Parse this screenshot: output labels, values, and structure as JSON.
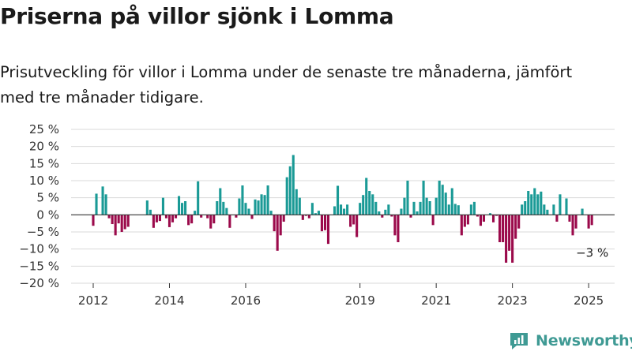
{
  "title": "Priserna på villor sjönk i Lomma",
  "subtitle_line1": "Prisutveckling för villor i Lomma under de senaste tre månaderna, jämfört",
  "subtitle_line2": "med tre månader tidigare.",
  "brand": "Newsworthy",
  "colors": {
    "positive": "#1a9a96",
    "negative": "#9b0a4b",
    "grid": "#d9d9d9",
    "axis": "#333333",
    "brand": "#3f9a94"
  },
  "chart_data": {
    "type": "bar",
    "ylim": [
      -20,
      25
    ],
    "yticks": [
      25,
      20,
      15,
      10,
      5,
      0,
      -5,
      -10,
      -15,
      -20
    ],
    "ytick_labels": [
      "25 %",
      "20 %",
      "15 %",
      "10 %",
      "5 %",
      "0 %",
      "−5 %",
      "−10 %",
      "−15 %",
      "−20 %"
    ],
    "x_start": "2012-01",
    "x_end": "2025-07",
    "xtick_labels": [
      {
        "label": "2012",
        "date": "2012-01"
      },
      {
        "label": "2014",
        "date": "2014-01"
      },
      {
        "label": "2016",
        "date": "2016-01"
      },
      {
        "label": "2019",
        "date": "2019-01"
      },
      {
        "label": "2021",
        "date": "2021-01"
      },
      {
        "label": "2023",
        "date": "2023-01"
      },
      {
        "label": "2025",
        "date": "2025-01"
      }
    ],
    "grid": true,
    "annotation": {
      "text": "−3 %",
      "date": "2025-01",
      "value": -3
    },
    "series": [
      {
        "points": [
          {
            "date": "2012-01",
            "value": -3.2
          },
          {
            "date": "2012-02",
            "value": 6.2
          },
          {
            "date": "2012-04",
            "value": 8.3
          },
          {
            "date": "2012-05",
            "value": 6.0
          },
          {
            "date": "2012-06",
            "value": -1.0
          },
          {
            "date": "2012-07",
            "value": -2.7
          },
          {
            "date": "2012-08",
            "value": -6.0
          },
          {
            "date": "2012-09",
            "value": -2.5
          },
          {
            "date": "2012-10",
            "value": -5.0
          },
          {
            "date": "2012-11",
            "value": -4.2
          },
          {
            "date": "2012-12",
            "value": -3.5
          },
          {
            "date": "2013-06",
            "value": 4.2
          },
          {
            "date": "2013-07",
            "value": 1.5
          },
          {
            "date": "2013-08",
            "value": -3.8
          },
          {
            "date": "2013-09",
            "value": -2.2
          },
          {
            "date": "2013-10",
            "value": -1.8
          },
          {
            "date": "2013-11",
            "value": 5.0
          },
          {
            "date": "2013-12",
            "value": -1.0
          },
          {
            "date": "2014-01",
            "value": -3.6
          },
          {
            "date": "2014-02",
            "value": -2.2
          },
          {
            "date": "2014-03",
            "value": -1.0
          },
          {
            "date": "2014-04",
            "value": 5.5
          },
          {
            "date": "2014-05",
            "value": 3.5
          },
          {
            "date": "2014-06",
            "value": 4.0
          },
          {
            "date": "2014-07",
            "value": -3.0
          },
          {
            "date": "2014-08",
            "value": -2.5
          },
          {
            "date": "2014-09",
            "value": 1.2
          },
          {
            "date": "2014-10",
            "value": 9.8
          },
          {
            "date": "2014-11",
            "value": -0.8
          },
          {
            "date": "2015-01",
            "value": -1.0
          },
          {
            "date": "2015-02",
            "value": -4.0
          },
          {
            "date": "2015-03",
            "value": -2.5
          },
          {
            "date": "2015-04",
            "value": 4.0
          },
          {
            "date": "2015-05",
            "value": 7.8
          },
          {
            "date": "2015-06",
            "value": 3.8
          },
          {
            "date": "2015-07",
            "value": 2.0
          },
          {
            "date": "2015-08",
            "value": -3.8
          },
          {
            "date": "2015-10",
            "value": -0.8
          },
          {
            "date": "2015-11",
            "value": 4.8
          },
          {
            "date": "2015-12",
            "value": 8.6
          },
          {
            "date": "2016-01",
            "value": 3.5
          },
          {
            "date": "2016-02",
            "value": 1.8
          },
          {
            "date": "2016-03",
            "value": -1.2
          },
          {
            "date": "2016-04",
            "value": 4.5
          },
          {
            "date": "2016-05",
            "value": 4.2
          },
          {
            "date": "2016-06",
            "value": 6.0
          },
          {
            "date": "2016-07",
            "value": 5.8
          },
          {
            "date": "2016-08",
            "value": 8.6
          },
          {
            "date": "2016-09",
            "value": 1.2
          },
          {
            "date": "2016-10",
            "value": -4.8
          },
          {
            "date": "2016-11",
            "value": -10.5
          },
          {
            "date": "2016-12",
            "value": -6.0
          },
          {
            "date": "2017-01",
            "value": -2.0
          },
          {
            "date": "2017-02",
            "value": 11.0
          },
          {
            "date": "2017-03",
            "value": 14.2
          },
          {
            "date": "2017-04",
            "value": 17.5
          },
          {
            "date": "2017-05",
            "value": 7.5
          },
          {
            "date": "2017-06",
            "value": 5.0
          },
          {
            "date": "2017-07",
            "value": -1.5
          },
          {
            "date": "2017-08",
            "value": -0.3
          },
          {
            "date": "2017-09",
            "value": -1.0
          },
          {
            "date": "2017-10",
            "value": 3.5
          },
          {
            "date": "2017-11",
            "value": 0.5
          },
          {
            "date": "2017-12",
            "value": 1.2
          },
          {
            "date": "2018-01",
            "value": -4.8
          },
          {
            "date": "2018-02",
            "value": -4.5
          },
          {
            "date": "2018-03",
            "value": -8.5
          },
          {
            "date": "2018-05",
            "value": 2.5
          },
          {
            "date": "2018-06",
            "value": 8.5
          },
          {
            "date": "2018-07",
            "value": 3.0
          },
          {
            "date": "2018-08",
            "value": 1.8
          },
          {
            "date": "2018-09",
            "value": 3.0
          },
          {
            "date": "2018-10",
            "value": -3.5
          },
          {
            "date": "2018-11",
            "value": -2.8
          },
          {
            "date": "2018-12",
            "value": -6.5
          },
          {
            "date": "2019-01",
            "value": 3.5
          },
          {
            "date": "2019-02",
            "value": 5.8
          },
          {
            "date": "2019-03",
            "value": 10.8
          },
          {
            "date": "2019-04",
            "value": 7.0
          },
          {
            "date": "2019-05",
            "value": 6.0
          },
          {
            "date": "2019-06",
            "value": 3.8
          },
          {
            "date": "2019-07",
            "value": 1.0
          },
          {
            "date": "2019-08",
            "value": -0.8
          },
          {
            "date": "2019-09",
            "value": 1.5
          },
          {
            "date": "2019-10",
            "value": 3.0
          },
          {
            "date": "2019-11",
            "value": -0.5
          },
          {
            "date": "2019-12",
            "value": -6.0
          },
          {
            "date": "2020-01",
            "value": -8.0
          },
          {
            "date": "2020-02",
            "value": 1.8
          },
          {
            "date": "2020-03",
            "value": 5.0
          },
          {
            "date": "2020-04",
            "value": 10.0
          },
          {
            "date": "2020-05",
            "value": -0.8
          },
          {
            "date": "2020-06",
            "value": 3.8
          },
          {
            "date": "2020-07",
            "value": 1.0
          },
          {
            "date": "2020-08",
            "value": 3.8
          },
          {
            "date": "2020-09",
            "value": 10.0
          },
          {
            "date": "2020-10",
            "value": 5.0
          },
          {
            "date": "2020-11",
            "value": 4.0
          },
          {
            "date": "2020-12",
            "value": -3.0
          },
          {
            "date": "2021-01",
            "value": 5.0
          },
          {
            "date": "2021-02",
            "value": 10.0
          },
          {
            "date": "2021-03",
            "value": 8.8
          },
          {
            "date": "2021-04",
            "value": 6.5
          },
          {
            "date": "2021-05",
            "value": 3.0
          },
          {
            "date": "2021-06",
            "value": 7.8
          },
          {
            "date": "2021-07",
            "value": 3.2
          },
          {
            "date": "2021-08",
            "value": 2.8
          },
          {
            "date": "2021-09",
            "value": -6.0
          },
          {
            "date": "2021-10",
            "value": -3.5
          },
          {
            "date": "2021-11",
            "value": -2.8
          },
          {
            "date": "2021-12",
            "value": 3.0
          },
          {
            "date": "2022-01",
            "value": 3.8
          },
          {
            "date": "2022-02",
            "value": -0.5
          },
          {
            "date": "2022-03",
            "value": -3.2
          },
          {
            "date": "2022-04",
            "value": -2.0
          },
          {
            "date": "2022-06",
            "value": 0.5
          },
          {
            "date": "2022-07",
            "value": -2.2
          },
          {
            "date": "2022-08",
            "value": -0.3
          },
          {
            "date": "2022-09",
            "value": -8.0
          },
          {
            "date": "2022-10",
            "value": -8.0
          },
          {
            "date": "2022-11",
            "value": -14.0
          },
          {
            "date": "2022-12",
            "value": -10.5
          },
          {
            "date": "2023-01",
            "value": -14.0
          },
          {
            "date": "2023-02",
            "value": -7.0
          },
          {
            "date": "2023-03",
            "value": -4.0
          },
          {
            "date": "2023-04",
            "value": 3.0
          },
          {
            "date": "2023-05",
            "value": 4.0
          },
          {
            "date": "2023-06",
            "value": 7.0
          },
          {
            "date": "2023-07",
            "value": 6.0
          },
          {
            "date": "2023-08",
            "value": 7.8
          },
          {
            "date": "2023-09",
            "value": 6.0
          },
          {
            "date": "2023-10",
            "value": 6.8
          },
          {
            "date": "2023-11",
            "value": 3.0
          },
          {
            "date": "2023-12",
            "value": 1.5
          },
          {
            "date": "2024-02",
            "value": 3.0
          },
          {
            "date": "2024-03",
            "value": -2.0
          },
          {
            "date": "2024-04",
            "value": 6.0
          },
          {
            "date": "2024-06",
            "value": 4.8
          },
          {
            "date": "2024-07",
            "value": -2.0
          },
          {
            "date": "2024-08",
            "value": -6.0
          },
          {
            "date": "2024-09",
            "value": -4.0
          },
          {
            "date": "2024-11",
            "value": 1.8
          },
          {
            "date": "2025-01",
            "value": -4.0
          },
          {
            "date": "2025-02",
            "value": -3.0
          }
        ]
      }
    ]
  }
}
